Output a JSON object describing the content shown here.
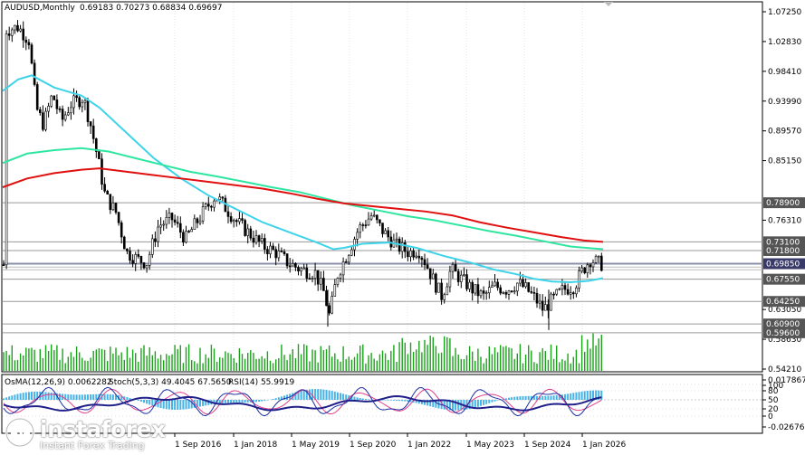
{
  "header": {
    "symbol": "AUDUSD,Monthly",
    "ohlc": "0.69183 0.70273 0.68834 0.69697"
  },
  "indicators": {
    "osma": "OsMA(12,26,9) 0.0062282",
    "stoch": "Stoch(5,3,3) 49.4045 67.5650",
    "rsi": "RSI(14) 55.9919"
  },
  "price_axis": [
    "1.07250",
    "1.02830",
    "0.98410",
    "0.93990",
    "0.89570",
    "0.85150",
    "0.76310",
    "0.63050",
    "0.58630",
    "0.54210"
  ],
  "price_labels": [
    {
      "text": "0.78900",
      "color": "#555555"
    },
    {
      "text": "0.73100",
      "color": "#555555"
    },
    {
      "text": "0.71800",
      "color": "#555555"
    },
    {
      "text": "0.69850",
      "color": "#3a3a6a"
    },
    {
      "text": "0.67550",
      "color": "#555555"
    },
    {
      "text": "0.64250",
      "color": "#555555"
    },
    {
      "text": "0.60900",
      "color": "#555555"
    },
    {
      "text": "0.59600",
      "color": "#555555"
    }
  ],
  "sub_axis": [
    "0.017867",
    "100",
    "80",
    "50",
    "20",
    "0",
    "-0.026760"
  ],
  "time_axis": [
    "1 Sep 2016",
    "1 Jan 2018",
    "1 May 2019",
    "1 Sep 2020",
    "1 Jan 2022",
    "1 May 2023",
    "1 Sep 2024",
    "1 Jan 2026"
  ],
  "logo": {
    "name": "instaforex",
    "tagline": "Instant Forex Trading"
  },
  "colors": {
    "candles": "#000000",
    "ma_cyan": "#3fd3ea",
    "ma_green": "#2ee6a0",
    "ma_red": "#e01010",
    "volume": "#1aa31a",
    "osma": "#46b2e6",
    "stoch_main": "#1c2ea5",
    "stoch_signal": "#e0408a",
    "rsi": "#20208a"
  }
}
